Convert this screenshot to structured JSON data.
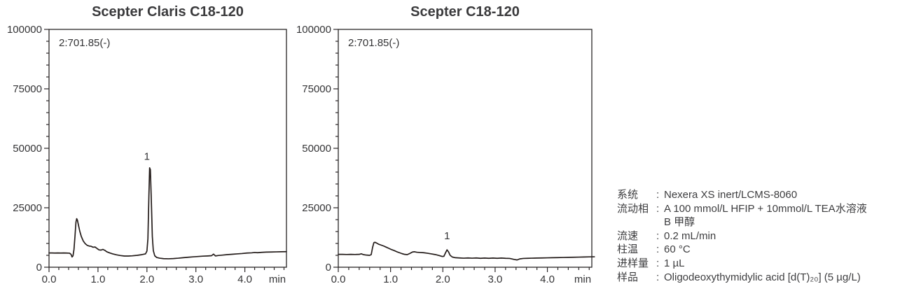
{
  "style": {
    "background": "#ffffff",
    "trace_color": "#241c1a",
    "axis_color": "#2a2627",
    "tick_label_color": "#343436",
    "title_color": "#3a3a3c",
    "info_text_color": "#3d3d3f"
  },
  "info": {
    "rows": [
      {
        "label": "系统",
        "colon": ":",
        "value": "Nexera XS inert/LCMS-8060"
      },
      {
        "label": "流动相",
        "colon": ":",
        "value": "A 100 mmol/L HFIP + 10mmol/L TEA水溶液"
      },
      {
        "label": "",
        "colon": "",
        "value": "B 甲醇"
      },
      {
        "label": "流速",
        "colon": ":",
        "value": "0.2 mL/min"
      },
      {
        "label": "柱温",
        "colon": ":",
        "value": "60 °C"
      },
      {
        "label": "进样量",
        "colon": ":",
        "value": "1 µL"
      },
      {
        "label": "样品",
        "colon": ":",
        "value": "Oligodeoxythymidylic acid [d(T)₂₀] (5 µg/L)"
      }
    ]
  },
  "chart_data": [
    {
      "type": "line",
      "title": "Scepter Claris C18-120",
      "annotation": "2:701.85(-)",
      "xlabel": "min",
      "xlim": [
        0,
        4.85
      ],
      "ylim": [
        0,
        100000
      ],
      "xticks": [
        0.0,
        1.0,
        2.0,
        3.0,
        4.0
      ],
      "xtick_labels": [
        "0.0",
        "1.0",
        "2.0",
        "3.0",
        "4.0"
      ],
      "x_minor_step": 0.2,
      "yticks": [
        0,
        25000,
        50000,
        75000,
        100000
      ],
      "ytick_labels": [
        "0",
        "25000",
        "50000",
        "75000",
        "100000"
      ],
      "y_minor_step": 5000,
      "grid": false,
      "peaks": [
        {
          "label": "1",
          "x": 2.0,
          "y": 45200
        }
      ],
      "points": [
        [
          0.0,
          6000
        ],
        [
          0.06,
          6000
        ],
        [
          0.12,
          5950
        ],
        [
          0.18,
          6000
        ],
        [
          0.24,
          5950
        ],
        [
          0.3,
          6000
        ],
        [
          0.36,
          5950
        ],
        [
          0.42,
          5900
        ],
        [
          0.45,
          5400
        ],
        [
          0.47,
          4300
        ],
        [
          0.49,
          4800
        ],
        [
          0.51,
          7500
        ],
        [
          0.53,
          13000
        ],
        [
          0.55,
          19000
        ],
        [
          0.565,
          20400
        ],
        [
          0.58,
          19800
        ],
        [
          0.6,
          17800
        ],
        [
          0.63,
          15000
        ],
        [
          0.66,
          12900
        ],
        [
          0.7,
          11000
        ],
        [
          0.74,
          9900
        ],
        [
          0.78,
          9200
        ],
        [
          0.82,
          8900
        ],
        [
          0.86,
          8800
        ],
        [
          0.9,
          8400
        ],
        [
          0.94,
          8500
        ],
        [
          0.98,
          7900
        ],
        [
          1.02,
          7300
        ],
        [
          1.06,
          7200
        ],
        [
          1.1,
          7500
        ],
        [
          1.14,
          7100
        ],
        [
          1.18,
          6500
        ],
        [
          1.24,
          6000
        ],
        [
          1.3,
          5600
        ],
        [
          1.38,
          5200
        ],
        [
          1.46,
          4900
        ],
        [
          1.54,
          4700
        ],
        [
          1.62,
          4700
        ],
        [
          1.7,
          4800
        ],
        [
          1.8,
          5000
        ],
        [
          1.9,
          5300
        ],
        [
          1.97,
          5600
        ],
        [
          2.0,
          6800
        ],
        [
          2.02,
          12000
        ],
        [
          2.04,
          30000
        ],
        [
          2.055,
          41800
        ],
        [
          2.07,
          41000
        ],
        [
          2.09,
          28000
        ],
        [
          2.11,
          13000
        ],
        [
          2.13,
          7000
        ],
        [
          2.16,
          4800
        ],
        [
          2.2,
          4100
        ],
        [
          2.26,
          3800
        ],
        [
          2.34,
          3600
        ],
        [
          2.44,
          3550
        ],
        [
          2.54,
          3650
        ],
        [
          2.64,
          3800
        ],
        [
          2.74,
          4000
        ],
        [
          2.84,
          4200
        ],
        [
          2.94,
          4350
        ],
        [
          3.04,
          4500
        ],
        [
          3.14,
          4650
        ],
        [
          3.24,
          4750
        ],
        [
          3.32,
          4850
        ],
        [
          3.36,
          5500
        ],
        [
          3.4,
          4750
        ],
        [
          3.46,
          4950
        ],
        [
          3.54,
          5100
        ],
        [
          3.64,
          5300
        ],
        [
          3.74,
          5450
        ],
        [
          3.84,
          5600
        ],
        [
          3.94,
          5750
        ],
        [
          4.04,
          5950
        ],
        [
          4.14,
          6050
        ],
        [
          4.2,
          6200
        ],
        [
          4.26,
          6100
        ],
        [
          4.34,
          6250
        ],
        [
          4.44,
          6350
        ],
        [
          4.54,
          6400
        ],
        [
          4.64,
          6450
        ],
        [
          4.74,
          6500
        ],
        [
          4.85,
          6550
        ]
      ]
    },
    {
      "type": "line",
      "title": "Scepter C18-120",
      "annotation": "2:701.85(-)",
      "xlabel": "min",
      "xlim": [
        0,
        4.85
      ],
      "ylim": [
        0,
        100000
      ],
      "xticks": [
        0.0,
        1.0,
        2.0,
        3.0,
        4.0
      ],
      "xtick_labels": [
        "0.0",
        "1.0",
        "2.0",
        "3.0",
        "4.0"
      ],
      "x_minor_step": 0.2,
      "yticks": [
        0,
        25000,
        50000,
        75000,
        100000
      ],
      "ytick_labels": [
        "0",
        "25000",
        "50000",
        "75000",
        "100000"
      ],
      "y_minor_step": 5000,
      "grid": false,
      "peaks": [
        {
          "label": "1",
          "x": 2.08,
          "y": 11800
        }
      ],
      "points": [
        [
          0.0,
          5400
        ],
        [
          0.08,
          5400
        ],
        [
          0.16,
          5350
        ],
        [
          0.24,
          5400
        ],
        [
          0.32,
          5350
        ],
        [
          0.4,
          5400
        ],
        [
          0.44,
          5650
        ],
        [
          0.48,
          5300
        ],
        [
          0.54,
          5100
        ],
        [
          0.6,
          5000
        ],
        [
          0.63,
          5300
        ],
        [
          0.655,
          8200
        ],
        [
          0.68,
          10300
        ],
        [
          0.7,
          10500
        ],
        [
          0.73,
          10200
        ],
        [
          0.77,
          9700
        ],
        [
          0.82,
          9300
        ],
        [
          0.87,
          8900
        ],
        [
          0.92,
          8400
        ],
        [
          0.97,
          7900
        ],
        [
          1.02,
          7400
        ],
        [
          1.07,
          7000
        ],
        [
          1.12,
          6500
        ],
        [
          1.17,
          6100
        ],
        [
          1.22,
          5700
        ],
        [
          1.27,
          5400
        ],
        [
          1.32,
          5300
        ],
        [
          1.37,
          5800
        ],
        [
          1.42,
          6400
        ],
        [
          1.46,
          6500
        ],
        [
          1.5,
          6300
        ],
        [
          1.56,
          6200
        ],
        [
          1.63,
          6100
        ],
        [
          1.7,
          5900
        ],
        [
          1.78,
          5600
        ],
        [
          1.86,
          5300
        ],
        [
          1.93,
          4900
        ],
        [
          1.99,
          4500
        ],
        [
          2.02,
          4600
        ],
        [
          2.05,
          6000
        ],
        [
          2.08,
          7300
        ],
        [
          2.11,
          6400
        ],
        [
          2.14,
          5000
        ],
        [
          2.18,
          4300
        ],
        [
          2.24,
          4000
        ],
        [
          2.32,
          3900
        ],
        [
          2.4,
          3800
        ],
        [
          2.48,
          3900
        ],
        [
          2.56,
          3800
        ],
        [
          2.64,
          3900
        ],
        [
          2.72,
          3750
        ],
        [
          2.8,
          3850
        ],
        [
          2.88,
          3750
        ],
        [
          2.96,
          3850
        ],
        [
          3.04,
          3750
        ],
        [
          3.12,
          3850
        ],
        [
          3.2,
          3750
        ],
        [
          3.28,
          3700
        ],
        [
          3.36,
          3300
        ],
        [
          3.42,
          3050
        ],
        [
          3.47,
          3500
        ],
        [
          3.54,
          3700
        ],
        [
          3.62,
          3750
        ],
        [
          3.7,
          3800
        ],
        [
          3.8,
          3850
        ],
        [
          3.9,
          3900
        ],
        [
          4.0,
          3950
        ],
        [
          4.1,
          4000
        ],
        [
          4.2,
          4050
        ],
        [
          4.3,
          4100
        ],
        [
          4.4,
          4150
        ],
        [
          4.5,
          4200
        ],
        [
          4.6,
          4250
        ],
        [
          4.7,
          4300
        ],
        [
          4.8,
          4350
        ],
        [
          4.9,
          4400
        ]
      ]
    }
  ]
}
